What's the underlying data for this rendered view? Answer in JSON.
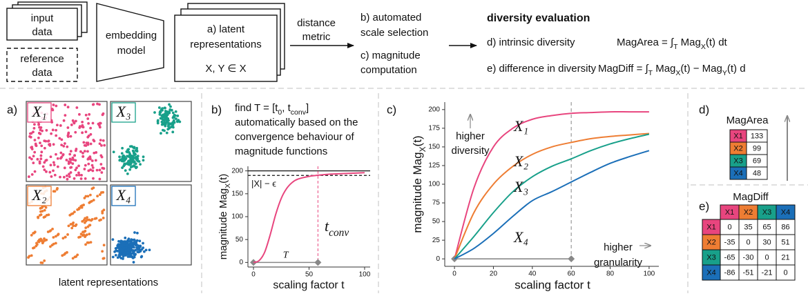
{
  "pipeline": {
    "input": [
      "input",
      "data"
    ],
    "reference": [
      "reference",
      "data"
    ],
    "model": [
      "embedding",
      "model"
    ],
    "latent": [
      "a) latent",
      "representations"
    ],
    "latent_sets": "X, Y ∈ X",
    "metric": [
      "distance",
      "metric"
    ],
    "scale": [
      "b) automated",
      "scale selection"
    ],
    "magnitude": [
      "c) magnitude",
      "computation"
    ]
  },
  "evaluation": {
    "title": "diversity evaluation",
    "intrinsic": "d) intrinsic diversity",
    "intrinsic_formula": [
      "MagArea = ∫",
      "T",
      " Mag",
      "X",
      "(t) dt"
    ],
    "difference": "e) difference in diversity",
    "difference_formula": [
      "MagDiff = ∫",
      "T",
      " Mag",
      "X",
      "(t) − Mag",
      "Y",
      "(t) d"
    ]
  },
  "panel_a": {
    "label": "a)",
    "sets": [
      "X₁",
      "X₂",
      "X₃",
      "X₄"
    ],
    "caption": "latent representations"
  },
  "panel_b": {
    "label": "b)",
    "text": [
      [
        "find T = [t",
        "0",
        ", t",
        "conv",
        "]"
      ],
      [
        "automatically based on the"
      ],
      [
        "convergence behaviour of"
      ],
      [
        "magnitude functions"
      ]
    ],
    "chart": {
      "type": "line",
      "x": [
        0,
        5,
        10,
        15,
        20,
        25,
        30,
        35,
        40,
        50,
        60,
        70,
        80,
        90,
        100
      ],
      "values": [
        0,
        4,
        22,
        60,
        105,
        140,
        162,
        175,
        182,
        188,
        191,
        193,
        194,
        195,
        196
      ],
      "color": "#e8457e",
      "xlim": [
        -5,
        105
      ],
      "ylim": [
        -10,
        210
      ],
      "xticks": [
        0,
        50,
        100
      ],
      "yticks": [
        0,
        50,
        100,
        150,
        200
      ],
      "xlabel": "scaling factor t",
      "ylabel": [
        "magnitude Mag",
        "X",
        "(t)"
      ],
      "cardinality": 200,
      "threshold": 190,
      "threshold_label": "|X| − ϵ",
      "t_conv": 58,
      "t_conv_label": [
        "t",
        "conv"
      ],
      "interval_label": "T"
    }
  },
  "panel_c": {
    "type": "line",
    "label": "c)",
    "x": [
      0,
      10,
      20,
      30,
      40,
      50,
      60,
      70,
      80,
      90,
      100
    ],
    "series": [
      {
        "name": "X₁",
        "color": "#e8457e",
        "values": [
          0,
          95,
          150,
          175,
          187,
          192,
          195,
          196,
          197,
          197,
          197
        ]
      },
      {
        "name": "X₂",
        "color": "#ee7d33",
        "values": [
          0,
          62,
          100,
          124,
          140,
          150,
          156,
          161,
          164,
          166,
          168
        ]
      },
      {
        "name": "X₃",
        "color": "#18a08a",
        "values": [
          0,
          30,
          62,
          90,
          110,
          124,
          134,
          145,
          154,
          161,
          167
        ]
      },
      {
        "name": "X₄",
        "color": "#1b6fb8",
        "values": [
          0,
          14,
          34,
          57,
          78,
          90,
          103,
          116,
          128,
          137,
          145
        ]
      }
    ],
    "xlim": [
      -5,
      105
    ],
    "ylim": [
      -10,
      210
    ],
    "xticks": [
      0,
      20,
      40,
      60,
      80,
      100
    ],
    "yticks": [
      0,
      25,
      50,
      75,
      100,
      125,
      150,
      175,
      200
    ],
    "xlabel": "scaling factor t",
    "ylabel": [
      "magnitude Mag",
      "X",
      "(t)"
    ],
    "t_conv": 60,
    "annotations": {
      "diversity": [
        "higher",
        "diversity"
      ],
      "granularity": [
        "higher",
        "granularity"
      ]
    }
  },
  "panel_d": {
    "label": "d)",
    "title": "MagArea",
    "rows": [
      [
        "X1",
        133
      ],
      [
        "X2",
        99
      ],
      [
        "X3",
        69
      ],
      [
        "X4",
        48
      ]
    ]
  },
  "panel_e": {
    "label": "e)",
    "title": "MagDiff",
    "columns": [
      "X1",
      "X2",
      "X3",
      "X4"
    ],
    "rows": [
      {
        "name": "X1",
        "values": [
          0,
          35,
          65,
          86
        ]
      },
      {
        "name": "X2",
        "values": [
          -35,
          0,
          30,
          51
        ]
      },
      {
        "name": "X3",
        "values": [
          -65,
          -30,
          0,
          21
        ]
      },
      {
        "name": "X4",
        "values": [
          -86,
          -51,
          -21,
          0
        ]
      }
    ]
  }
}
